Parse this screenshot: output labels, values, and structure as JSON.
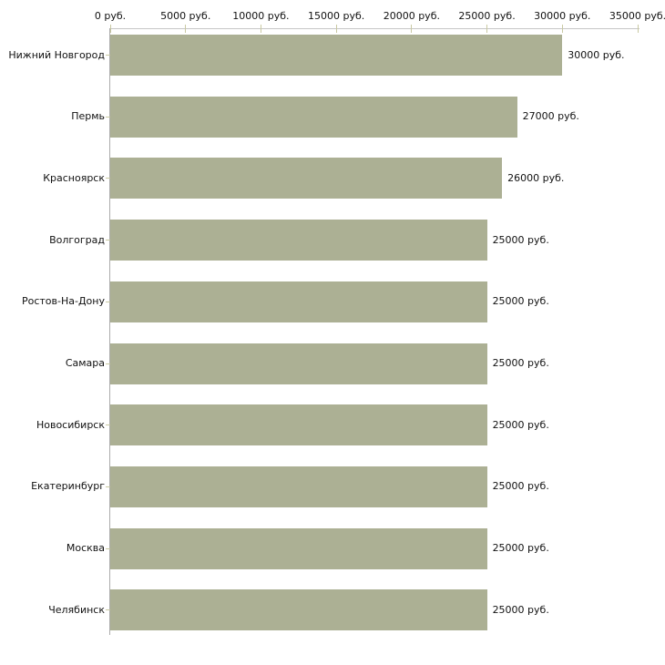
{
  "chart_data": {
    "type": "bar",
    "orientation": "horizontal",
    "categories": [
      "Нижний Новгород",
      "Пермь",
      "Красноярск",
      "Волгоград",
      "Ростов-На-Дону",
      "Самара",
      "Новосибирск",
      "Екатеринбург",
      "Москва",
      "Челябинск"
    ],
    "values": [
      30000,
      27000,
      26000,
      25000,
      25000,
      25000,
      25000,
      25000,
      25000,
      25000
    ],
    "value_labels": [
      "30000 руб.",
      "27000 руб.",
      "26000 руб.",
      "25000 руб.",
      "25000 руб.",
      "25000 руб.",
      "25000 руб.",
      "25000 руб.",
      "25000 руб.",
      "25000 руб."
    ],
    "x_ticks": [
      0,
      5000,
      10000,
      15000,
      20000,
      25000,
      30000,
      35000
    ],
    "x_tick_labels": [
      "0 руб.",
      "5000 руб.",
      "10000 руб.",
      "15000 руб.",
      "20000 руб.",
      "25000 руб.",
      "30000 руб.",
      "35000 руб."
    ],
    "xlim": [
      0,
      35000
    ],
    "unit": "руб.",
    "legend": "none",
    "grid": "off",
    "colors": {
      "bar": "#acb094",
      "x_axis_line": "#c6c6c6",
      "y_axis_line": "#ababab",
      "tick_mark": "#c9c9a2",
      "text": "#111111"
    }
  }
}
